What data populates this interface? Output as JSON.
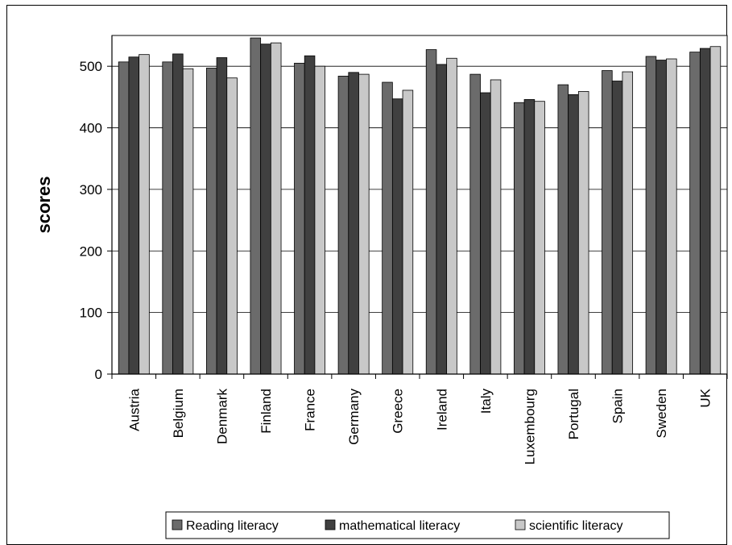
{
  "chart_data": {
    "type": "bar",
    "title": "",
    "xlabel": "",
    "ylabel": "scores",
    "ylim": [
      0,
      550
    ],
    "yticks": [
      0,
      100,
      200,
      300,
      400,
      500
    ],
    "grid": true,
    "legend_position": "bottom",
    "categories": [
      "Austria",
      "Belgium",
      "Denmark",
      "Finland",
      "France",
      "Germany",
      "Greece",
      "Ireland",
      "Italy",
      "Luxembourg",
      "Portugal",
      "Spain",
      "Sweden",
      "UK"
    ],
    "series": [
      {
        "name": "Reading literacy",
        "color": "#6b6b6b",
        "values": [
          507,
          507,
          497,
          546,
          505,
          484,
          474,
          527,
          487,
          441,
          470,
          493,
          516,
          523
        ]
      },
      {
        "name": "mathematical literacy",
        "color": "#404040",
        "values": [
          515,
          520,
          514,
          536,
          517,
          490,
          447,
          503,
          457,
          446,
          454,
          476,
          510,
          529
        ]
      },
      {
        "name": "scientific literacy",
        "color": "#c8c8c8",
        "values": [
          519,
          496,
          481,
          538,
          500,
          487,
          461,
          513,
          478,
          443,
          459,
          491,
          512,
          532
        ]
      }
    ]
  }
}
